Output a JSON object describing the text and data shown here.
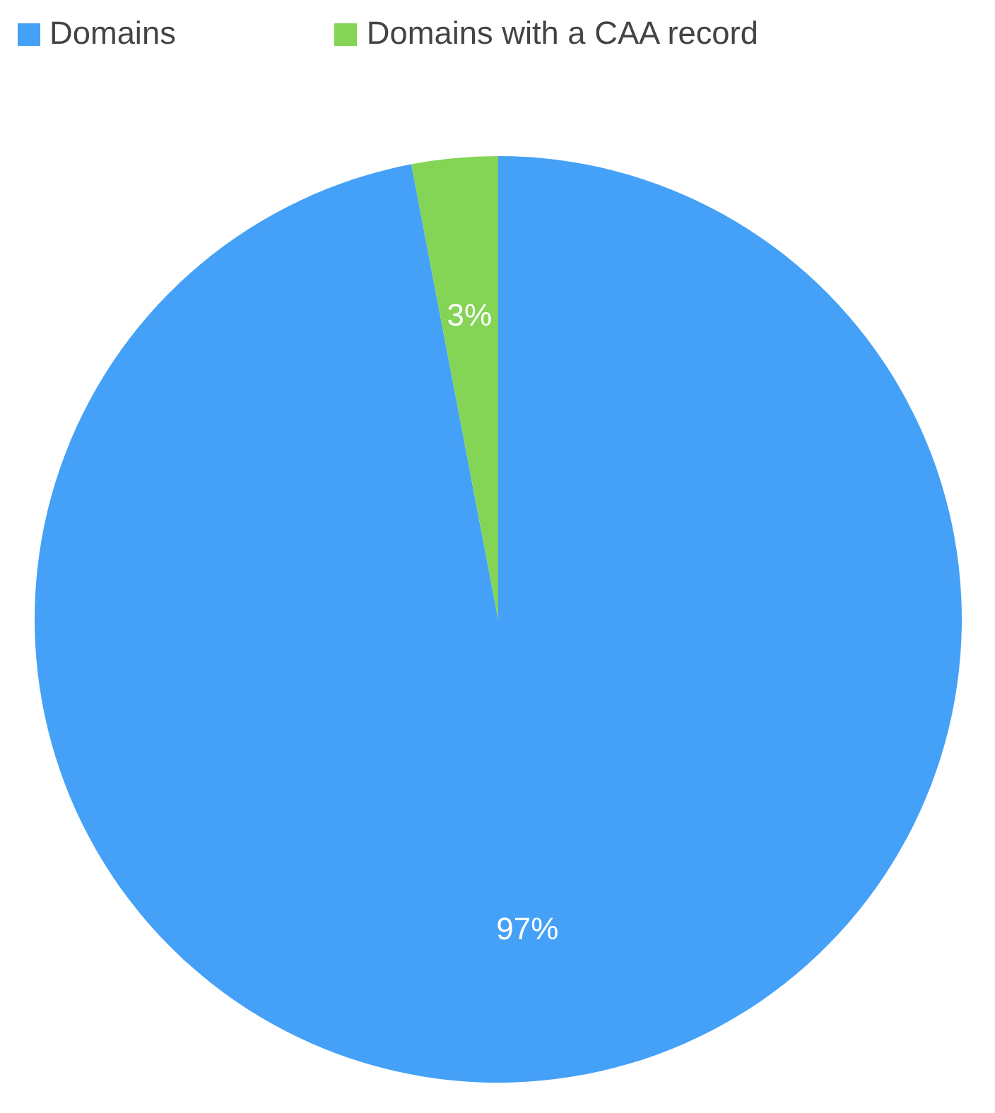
{
  "chart_data": {
    "type": "pie",
    "categories": [
      "Domains",
      "Domains with a CAA record"
    ],
    "values": [
      97,
      3
    ],
    "colors": [
      "#45a1f7",
      "#84d455"
    ],
    "value_labels": [
      "97%",
      "3%"
    ],
    "legend": "top"
  }
}
